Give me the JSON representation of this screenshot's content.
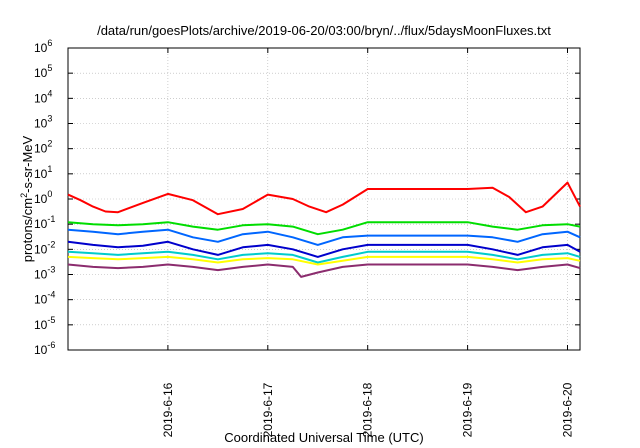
{
  "chart_data": {
    "type": "line",
    "title": "/data/run/goesPlots/archive/2019-06-20/03:00/bryn/../flux/5daysMoonFluxes.txt",
    "xlabel": "Coordinated Universal Time (UTC)",
    "ylabel": {
      "base": "protons/cm",
      "sup": "2",
      "rest": "-s-sr-MeV"
    },
    "yscale": "log",
    "ylim": [
      1e-06,
      1000000.0
    ],
    "xlim": [
      "2019-06-15T00:00",
      "2019-06-20T03:00"
    ],
    "grid": true,
    "legend": "none",
    "y_ticks": [
      {
        "value": 1e-06,
        "base": "10",
        "exp": "-6"
      },
      {
        "value": 1e-05,
        "base": "10",
        "exp": "-5"
      },
      {
        "value": 0.0001,
        "base": "10",
        "exp": "-4"
      },
      {
        "value": 0.001,
        "base": "10",
        "exp": "-3"
      },
      {
        "value": 0.01,
        "base": "10",
        "exp": "-2"
      },
      {
        "value": 0.1,
        "base": "10",
        "exp": "-1"
      },
      {
        "value": 1,
        "base": "10",
        "exp": "0"
      },
      {
        "value": 10,
        "base": "10",
        "exp": "1"
      },
      {
        "value": 100,
        "base": "10",
        "exp": "2"
      },
      {
        "value": 1000,
        "base": "10",
        "exp": "3"
      },
      {
        "value": 10000,
        "base": "10",
        "exp": "4"
      },
      {
        "value": 100000,
        "base": "10",
        "exp": "5"
      },
      {
        "value": 1000000,
        "base": "10",
        "exp": "6"
      }
    ],
    "x_ticks": [
      {
        "value": "2019-06-16",
        "label": "2019-6-16"
      },
      {
        "value": "2019-06-17",
        "label": "2019-6-17"
      },
      {
        "value": "2019-06-18",
        "label": "2019-6-18"
      },
      {
        "value": "2019-06-19",
        "label": "2019-6-19"
      },
      {
        "value": "2019-06-20",
        "label": "2019-6-20"
      }
    ],
    "series": [
      {
        "color": "#ff0000",
        "x": [
          "2019-06-15T00:00",
          "2019-06-15T03:00",
          "2019-06-15T06:00",
          "2019-06-15T09:00",
          "2019-06-15T12:00",
          "2019-06-15T18:00",
          "2019-06-16T00:00",
          "2019-06-16T06:00",
          "2019-06-16T12:00",
          "2019-06-16T18:00",
          "2019-06-17T00:00",
          "2019-06-17T06:00",
          "2019-06-17T10:00",
          "2019-06-17T14:00",
          "2019-06-17T18:00",
          "2019-06-18T00:00",
          "2019-06-18T06:00",
          "2019-06-18T12:00",
          "2019-06-18T18:00",
          "2019-06-19T00:00",
          "2019-06-19T06:00",
          "2019-06-19T10:00",
          "2019-06-19T14:00",
          "2019-06-19T18:00",
          "2019-06-20T00:00",
          "2019-06-20T03:00"
        ],
        "values": [
          1.5,
          0.9,
          0.5,
          0.32,
          0.3,
          0.7,
          1.6,
          0.9,
          0.25,
          0.4,
          1.5,
          1.0,
          0.5,
          0.3,
          0.6,
          2.5,
          2.5,
          2.5,
          2.5,
          2.5,
          2.8,
          1.2,
          0.3,
          0.5,
          4.5,
          0.5
        ]
      },
      {
        "color": "#00dd00",
        "x": [
          "2019-06-15T00:00",
          "2019-06-15T06:00",
          "2019-06-15T12:00",
          "2019-06-15T18:00",
          "2019-06-16T00:00",
          "2019-06-16T06:00",
          "2019-06-16T12:00",
          "2019-06-16T18:00",
          "2019-06-17T00:00",
          "2019-06-17T06:00",
          "2019-06-17T12:00",
          "2019-06-17T18:00",
          "2019-06-18T00:00",
          "2019-06-18T06:00",
          "2019-06-18T12:00",
          "2019-06-18T18:00",
          "2019-06-19T00:00",
          "2019-06-19T06:00",
          "2019-06-19T12:00",
          "2019-06-19T18:00",
          "2019-06-20T00:00",
          "2019-06-20T03:00"
        ],
        "values": [
          0.12,
          0.1,
          0.09,
          0.1,
          0.12,
          0.08,
          0.06,
          0.09,
          0.1,
          0.08,
          0.04,
          0.06,
          0.12,
          0.12,
          0.12,
          0.12,
          0.12,
          0.08,
          0.06,
          0.09,
          0.1,
          0.08
        ]
      },
      {
        "color": "#0066ff",
        "x": [
          "2019-06-15T00:00",
          "2019-06-15T06:00",
          "2019-06-15T12:00",
          "2019-06-15T18:00",
          "2019-06-16T00:00",
          "2019-06-16T06:00",
          "2019-06-16T12:00",
          "2019-06-16T18:00",
          "2019-06-17T00:00",
          "2019-06-17T06:00",
          "2019-06-17T12:00",
          "2019-06-17T18:00",
          "2019-06-18T00:00",
          "2019-06-18T06:00",
          "2019-06-18T12:00",
          "2019-06-18T18:00",
          "2019-06-19T00:00",
          "2019-06-19T06:00",
          "2019-06-19T12:00",
          "2019-06-19T18:00",
          "2019-06-20T00:00",
          "2019-06-20T03:00"
        ],
        "values": [
          0.06,
          0.05,
          0.04,
          0.05,
          0.06,
          0.03,
          0.02,
          0.04,
          0.05,
          0.03,
          0.015,
          0.03,
          0.035,
          0.035,
          0.035,
          0.035,
          0.035,
          0.03,
          0.02,
          0.04,
          0.05,
          0.03
        ]
      },
      {
        "color": "#0000cc",
        "x": [
          "2019-06-15T00:00",
          "2019-06-15T06:00",
          "2019-06-15T12:00",
          "2019-06-15T18:00",
          "2019-06-16T00:00",
          "2019-06-16T06:00",
          "2019-06-16T12:00",
          "2019-06-16T18:00",
          "2019-06-17T00:00",
          "2019-06-17T06:00",
          "2019-06-17T12:00",
          "2019-06-17T18:00",
          "2019-06-18T00:00",
          "2019-06-18T06:00",
          "2019-06-18T12:00",
          "2019-06-18T18:00",
          "2019-06-19T00:00",
          "2019-06-19T06:00",
          "2019-06-19T12:00",
          "2019-06-19T18:00",
          "2019-06-20T00:00",
          "2019-06-20T03:00"
        ],
        "values": [
          0.02,
          0.015,
          0.012,
          0.014,
          0.02,
          0.01,
          0.006,
          0.012,
          0.015,
          0.01,
          0.005,
          0.01,
          0.015,
          0.015,
          0.015,
          0.015,
          0.015,
          0.01,
          0.006,
          0.012,
          0.015,
          0.008
        ]
      },
      {
        "color": "#00cccc",
        "x": [
          "2019-06-15T00:00",
          "2019-06-15T06:00",
          "2019-06-15T12:00",
          "2019-06-15T18:00",
          "2019-06-16T00:00",
          "2019-06-16T06:00",
          "2019-06-16T12:00",
          "2019-06-16T18:00",
          "2019-06-17T00:00",
          "2019-06-17T06:00",
          "2019-06-17T12:00",
          "2019-06-17T18:00",
          "2019-06-18T00:00",
          "2019-06-18T06:00",
          "2019-06-18T12:00",
          "2019-06-18T18:00",
          "2019-06-19T00:00",
          "2019-06-19T06:00",
          "2019-06-19T12:00",
          "2019-06-19T18:00",
          "2019-06-20T00:00",
          "2019-06-20T03:00"
        ],
        "values": [
          0.008,
          0.007,
          0.006,
          0.007,
          0.008,
          0.006,
          0.004,
          0.006,
          0.007,
          0.006,
          0.003,
          0.005,
          0.008,
          0.008,
          0.008,
          0.008,
          0.008,
          0.006,
          0.004,
          0.006,
          0.007,
          0.005
        ]
      },
      {
        "color": "#ffff00",
        "x": [
          "2019-06-15T00:00",
          "2019-06-15T06:00",
          "2019-06-15T12:00",
          "2019-06-15T18:00",
          "2019-06-16T00:00",
          "2019-06-16T06:00",
          "2019-06-16T12:00",
          "2019-06-16T18:00",
          "2019-06-17T00:00",
          "2019-06-17T06:00",
          "2019-06-17T12:00",
          "2019-06-17T18:00",
          "2019-06-18T00:00",
          "2019-06-18T06:00",
          "2019-06-18T12:00",
          "2019-06-18T18:00",
          "2019-06-19T00:00",
          "2019-06-19T06:00",
          "2019-06-19T12:00",
          "2019-06-19T18:00",
          "2019-06-20T00:00",
          "2019-06-20T03:00"
        ],
        "values": [
          0.005,
          0.0045,
          0.004,
          0.0045,
          0.005,
          0.004,
          0.003,
          0.004,
          0.0045,
          0.004,
          0.0025,
          0.0035,
          0.005,
          0.005,
          0.005,
          0.005,
          0.005,
          0.004,
          0.003,
          0.004,
          0.0045,
          0.0035
        ]
      },
      {
        "color": "#8b2c6e",
        "x": [
          "2019-06-15T00:00",
          "2019-06-15T06:00",
          "2019-06-15T12:00",
          "2019-06-15T18:00",
          "2019-06-16T00:00",
          "2019-06-16T06:00",
          "2019-06-16T12:00",
          "2019-06-16T18:00",
          "2019-06-17T00:00",
          "2019-06-17T06:00",
          "2019-06-17T08:00",
          "2019-06-17T12:00",
          "2019-06-17T18:00",
          "2019-06-18T00:00",
          "2019-06-18T06:00",
          "2019-06-18T12:00",
          "2019-06-18T18:00",
          "2019-06-19T00:00",
          "2019-06-19T06:00",
          "2019-06-19T12:00",
          "2019-06-19T18:00",
          "2019-06-20T00:00",
          "2019-06-20T03:00"
        ],
        "values": [
          0.0025,
          0.002,
          0.0018,
          0.002,
          0.0025,
          0.002,
          0.0015,
          0.002,
          0.0025,
          0.002,
          0.0008,
          0.0012,
          0.002,
          0.0025,
          0.0025,
          0.0025,
          0.0025,
          0.0025,
          0.002,
          0.0015,
          0.002,
          0.0025,
          0.0018
        ]
      }
    ]
  }
}
